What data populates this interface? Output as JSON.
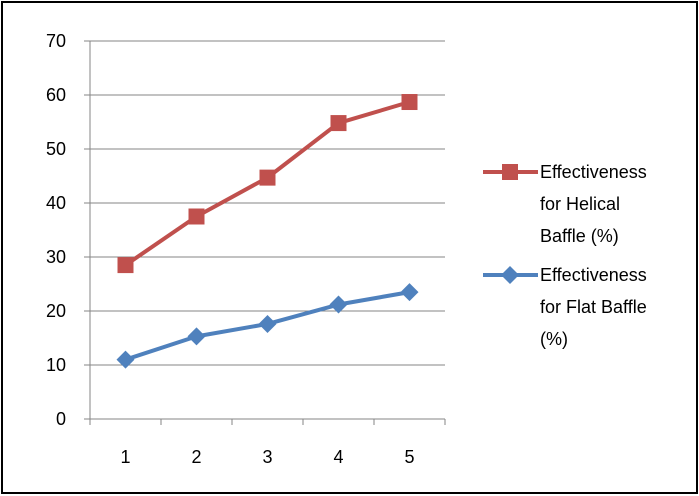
{
  "chart_data": {
    "type": "line",
    "title": "",
    "xlabel": "",
    "ylabel": "",
    "categories": [
      "1",
      "2",
      "3",
      "4",
      "5"
    ],
    "ylim": [
      0,
      70
    ],
    "yticks": [
      0,
      10,
      20,
      30,
      40,
      50,
      60,
      70
    ],
    "grid": true,
    "legend_position": "right",
    "series": [
      {
        "name_lines": [
          "Effectiveness",
          "for Helical",
          "Baffle (%)"
        ],
        "values": [
          28.5,
          37.5,
          44.7,
          54.8,
          58.7
        ],
        "color": "#c0504d",
        "marker": "square"
      },
      {
        "name_lines": [
          "Effectiveness",
          "for Flat Baffle",
          "(%)"
        ],
        "values": [
          11.0,
          15.3,
          17.6,
          21.2,
          23.5
        ],
        "color": "#4f81bd",
        "marker": "diamond"
      }
    ]
  }
}
